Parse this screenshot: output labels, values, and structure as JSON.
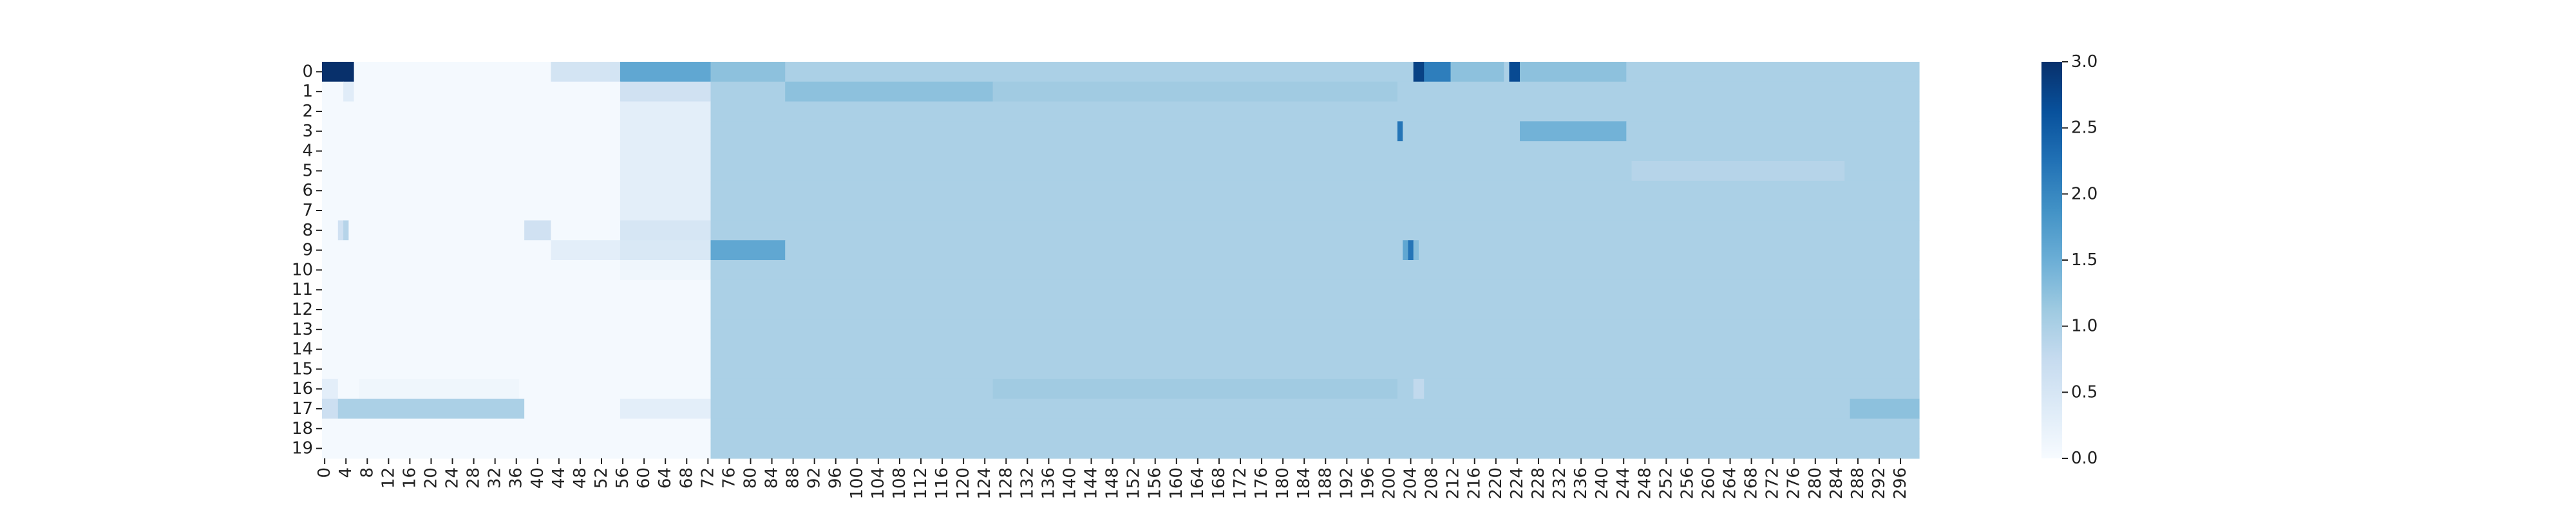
{
  "chart_data": {
    "type": "heatmap",
    "title": "",
    "xlabel": "",
    "ylabel": "",
    "x_count": 300,
    "y_count": 20,
    "x_tick_step": 4,
    "y_tick_labels": [
      "0",
      "1",
      "2",
      "3",
      "4",
      "5",
      "6",
      "7",
      "8",
      "9",
      "10",
      "11",
      "12",
      "13",
      "14",
      "15",
      "16",
      "17",
      "18",
      "19"
    ],
    "x_tick_labels": [
      "0",
      "4",
      "8",
      "12",
      "16",
      "20",
      "24",
      "28",
      "32",
      "36",
      "40",
      "44",
      "48",
      "52",
      "56",
      "60",
      "64",
      "68",
      "72",
      "76",
      "80",
      "84",
      "88",
      "92",
      "96",
      "100",
      "104",
      "108",
      "112",
      "116",
      "120",
      "124",
      "128",
      "132",
      "136",
      "140",
      "144",
      "148",
      "152",
      "156",
      "160",
      "164",
      "168",
      "172",
      "176",
      "180",
      "184",
      "188",
      "192",
      "196",
      "200",
      "204",
      "208",
      "212",
      "216",
      "220",
      "224",
      "228",
      "232",
      "236",
      "240",
      "244",
      "248",
      "252",
      "256",
      "260",
      "264",
      "268",
      "272",
      "276",
      "280",
      "284",
      "288",
      "292",
      "296"
    ],
    "colorbar": {
      "min": 0.0,
      "max": 3.0,
      "colormap": "Blues",
      "ticks": [
        "0.0",
        "0.5",
        "1.0",
        "1.5",
        "2.0",
        "2.5",
        "3.0"
      ]
    },
    "default_value": 1.0,
    "regions": [
      {
        "rows": [
          0,
          19
        ],
        "cols": [
          0,
          72
        ],
        "value": 0.05
      },
      {
        "rows": [
          0,
          0
        ],
        "cols": [
          0,
          5
        ],
        "value": 3.0
      },
      {
        "rows": [
          0,
          0
        ],
        "cols": [
          43,
          55
        ],
        "value": 0.55
      },
      {
        "rows": [
          0,
          0
        ],
        "cols": [
          56,
          72
        ],
        "value": 1.6
      },
      {
        "rows": [
          0,
          0
        ],
        "cols": [
          73,
          86
        ],
        "value": 1.25
      },
      {
        "rows": [
          0,
          0
        ],
        "cols": [
          205,
          206
        ],
        "value": 2.8
      },
      {
        "rows": [
          0,
          0
        ],
        "cols": [
          207,
          211
        ],
        "value": 2.1
      },
      {
        "rows": [
          0,
          0
        ],
        "cols": [
          212,
          221
        ],
        "value": 1.25
      },
      {
        "rows": [
          0,
          0
        ],
        "cols": [
          223,
          224
        ],
        "value": 2.7
      },
      {
        "rows": [
          0,
          0
        ],
        "cols": [
          225,
          244
        ],
        "value": 1.25
      },
      {
        "rows": [
          1,
          1
        ],
        "cols": [
          4,
          5
        ],
        "value": 0.35
      },
      {
        "rows": [
          1,
          1
        ],
        "cols": [
          56,
          72
        ],
        "value": 0.6
      },
      {
        "rows": [
          1,
          1
        ],
        "cols": [
          87,
          125
        ],
        "value": 1.25
      },
      {
        "rows": [
          1,
          1
        ],
        "cols": [
          126,
          201
        ],
        "value": 1.1
      },
      {
        "rows": [
          2,
          7
        ],
        "cols": [
          56,
          72
        ],
        "value": 0.3
      },
      {
        "rows": [
          3,
          3
        ],
        "cols": [
          202,
          202
        ],
        "value": 2.2
      },
      {
        "rows": [
          3,
          3
        ],
        "cols": [
          225,
          244
        ],
        "value": 1.45
      },
      {
        "rows": [
          5,
          5
        ],
        "cols": [
          246,
          285
        ],
        "value": 0.9
      },
      {
        "rows": [
          8,
          8
        ],
        "cols": [
          3,
          3
        ],
        "value": 0.6
      },
      {
        "rows": [
          8,
          8
        ],
        "cols": [
          4,
          4
        ],
        "value": 0.9
      },
      {
        "rows": [
          8,
          8
        ],
        "cols": [
          38,
          42
        ],
        "value": 0.6
      },
      {
        "rows": [
          8,
          8
        ],
        "cols": [
          56,
          72
        ],
        "value": 0.5
      },
      {
        "rows": [
          9,
          9
        ],
        "cols": [
          43,
          55
        ],
        "value": 0.3
      },
      {
        "rows": [
          9,
          9
        ],
        "cols": [
          56,
          72
        ],
        "value": 0.45
      },
      {
        "rows": [
          9,
          9
        ],
        "cols": [
          73,
          86
        ],
        "value": 1.6
      },
      {
        "rows": [
          9,
          9
        ],
        "cols": [
          203,
          203
        ],
        "value": 1.6
      },
      {
        "rows": [
          9,
          9
        ],
        "cols": [
          204,
          204
        ],
        "value": 2.2
      },
      {
        "rows": [
          9,
          9
        ],
        "cols": [
          205,
          205
        ],
        "value": 1.3
      },
      {
        "rows": [
          10,
          10
        ],
        "cols": [
          56,
          72
        ],
        "value": 0.12
      },
      {
        "rows": [
          16,
          16
        ],
        "cols": [
          0,
          2
        ],
        "value": 0.3
      },
      {
        "rows": [
          16,
          16
        ],
        "cols": [
          7,
          36
        ],
        "value": 0.12
      },
      {
        "rows": [
          16,
          16
        ],
        "cols": [
          126,
          201
        ],
        "value": 1.1
      },
      {
        "rows": [
          16,
          16
        ],
        "cols": [
          205,
          206
        ],
        "value": 0.8
      },
      {
        "rows": [
          17,
          17
        ],
        "cols": [
          0,
          2
        ],
        "value": 0.65
      },
      {
        "rows": [
          17,
          17
        ],
        "cols": [
          3,
          37
        ],
        "value": 1.0
      },
      {
        "rows": [
          17,
          17
        ],
        "cols": [
          56,
          72
        ],
        "value": 0.3
      },
      {
        "rows": [
          17,
          17
        ],
        "cols": [
          287,
          299
        ],
        "value": 1.25
      }
    ]
  }
}
